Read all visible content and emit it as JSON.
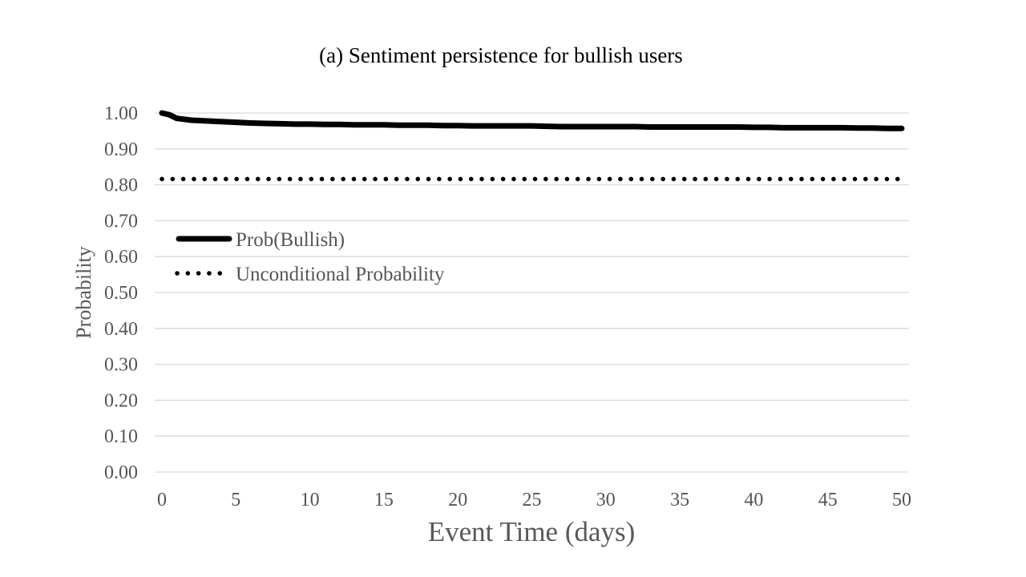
{
  "chart_data": {
    "type": "line",
    "title": "(a) Sentiment persistence for bullish users",
    "xlabel": "Event Time (days)",
    "ylabel": "Probability",
    "xlim": [
      0,
      50
    ],
    "ylim": [
      0,
      1
    ],
    "x_ticks": [
      "0",
      "5",
      "10",
      "15",
      "20",
      "25",
      "30",
      "35",
      "40",
      "45",
      "50"
    ],
    "y_ticks": [
      "0.00",
      "0.10",
      "0.20",
      "0.30",
      "0.40",
      "0.50",
      "0.60",
      "0.70",
      "0.80",
      "0.90",
      "1.00"
    ],
    "grid": true,
    "legend_position": "upper-left",
    "series": [
      {
        "name": "Prob(Bullish)",
        "style": "solid",
        "color": "#000000",
        "x": [
          0,
          0.5,
          1,
          2,
          3,
          4,
          5,
          6,
          7,
          8,
          9,
          10,
          11,
          12,
          13,
          14,
          15,
          16,
          17,
          18,
          19,
          20,
          21,
          22,
          23,
          24,
          25,
          26,
          27,
          28,
          29,
          30,
          31,
          32,
          33,
          34,
          35,
          36,
          37,
          38,
          39,
          40,
          41,
          42,
          43,
          44,
          45,
          46,
          47,
          48,
          49,
          50
        ],
        "values": [
          1.0,
          0.995,
          0.985,
          0.98,
          0.978,
          0.976,
          0.974,
          0.972,
          0.971,
          0.97,
          0.969,
          0.969,
          0.968,
          0.968,
          0.967,
          0.967,
          0.967,
          0.966,
          0.966,
          0.966,
          0.965,
          0.965,
          0.964,
          0.964,
          0.964,
          0.964,
          0.964,
          0.963,
          0.962,
          0.962,
          0.962,
          0.962,
          0.962,
          0.962,
          0.961,
          0.961,
          0.961,
          0.961,
          0.961,
          0.961,
          0.961,
          0.96,
          0.96,
          0.959,
          0.959,
          0.959,
          0.959,
          0.959,
          0.958,
          0.958,
          0.957,
          0.957
        ]
      },
      {
        "name": "Unconditional Probability",
        "style": "dotted",
        "color": "#000000",
        "x": [
          0,
          50
        ],
        "values": [
          0.816,
          0.816
        ]
      }
    ]
  }
}
